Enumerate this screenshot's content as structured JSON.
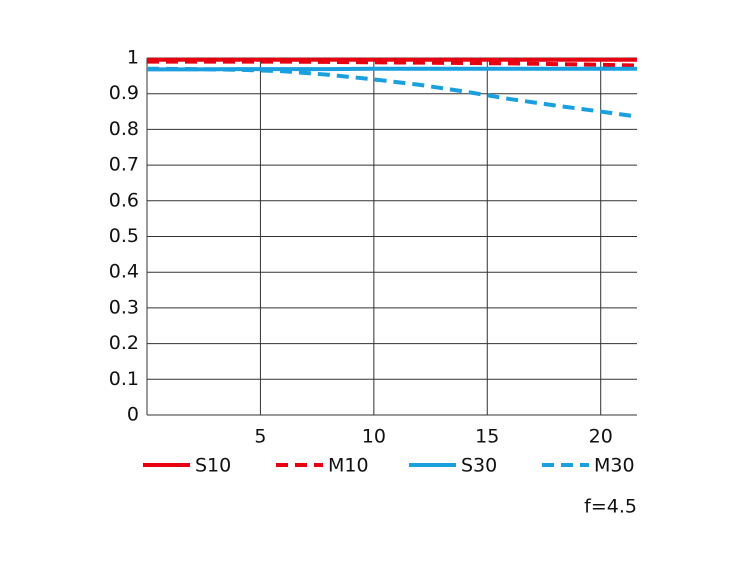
{
  "chart_data": {
    "type": "line",
    "x": [
      0,
      2,
      4,
      6,
      8,
      10,
      12,
      14,
      16,
      18,
      20,
      21.6
    ],
    "series": [
      {
        "name": "S10",
        "color": "#e60012",
        "style": "solid",
        "values": [
          0.995,
          0.995,
          0.995,
          0.995,
          0.995,
          0.995,
          0.995,
          0.995,
          0.995,
          0.995,
          0.995,
          0.995
        ]
      },
      {
        "name": "M10",
        "color": "#e60012",
        "style": "dashed",
        "values": [
          0.99,
          0.99,
          0.99,
          0.99,
          0.989,
          0.988,
          0.987,
          0.986,
          0.985,
          0.983,
          0.981,
          0.979
        ]
      },
      {
        "name": "S30",
        "color": "#1a9fdf",
        "style": "solid",
        "values": [
          0.968,
          0.968,
          0.969,
          0.969,
          0.969,
          0.97,
          0.97,
          0.97,
          0.97,
          0.97,
          0.97,
          0.97
        ]
      },
      {
        "name": "M30",
        "color": "#1a9fdf",
        "style": "dashed",
        "values": [
          0.97,
          0.969,
          0.967,
          0.963,
          0.953,
          0.94,
          0.925,
          0.906,
          0.885,
          0.867,
          0.85,
          0.836
        ]
      }
    ],
    "xlim": [
      0,
      21.6
    ],
    "xticks": [
      5,
      10,
      15,
      20
    ],
    "ylim": [
      0,
      1
    ],
    "yticks": [
      0,
      0.1,
      0.2,
      0.3,
      0.4,
      0.5,
      0.6,
      0.7,
      0.8,
      0.9,
      1
    ],
    "grid": true,
    "annotation": "f=4.5"
  }
}
